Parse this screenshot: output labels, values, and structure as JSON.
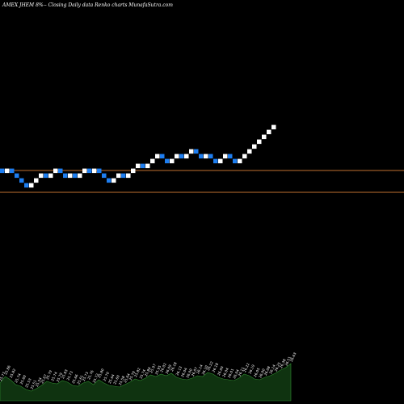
{
  "chart_data": {
    "type": "renko",
    "title": "AMEX  JHEM 8%-- Closing Daily data  Renko  charts MunafaSutra.com",
    "colors": {
      "up_brick": "#ffffff",
      "down_brick": "#1e7ef0",
      "reference_line": "#c07030",
      "volume_area": "#0f3310",
      "volume_edge": "#2f8a2f",
      "background": "#000000"
    },
    "reference_lines": [
      25.82,
      25.37
    ],
    "brick_size": 0.1,
    "bricks": [
      {
        "dir": "down",
        "close": 25.76
      },
      {
        "dir": "up",
        "close": 25.86
      },
      {
        "dir": "down",
        "close": 25.76
      },
      {
        "dir": "down",
        "close": 25.66
      },
      {
        "dir": "down",
        "close": 25.56
      },
      {
        "dir": "down",
        "close": 25.46
      },
      {
        "dir": "up",
        "close": 25.56
      },
      {
        "dir": "up",
        "close": 25.66
      },
      {
        "dir": "up",
        "close": 25.76
      },
      {
        "dir": "down",
        "close": 25.66
      },
      {
        "dir": "up",
        "close": 25.76
      },
      {
        "dir": "up",
        "close": 25.86
      },
      {
        "dir": "down",
        "close": 25.76
      },
      {
        "dir": "down",
        "close": 25.66
      },
      {
        "dir": "up",
        "close": 25.76
      },
      {
        "dir": "down",
        "close": 25.66
      },
      {
        "dir": "up",
        "close": 25.76
      },
      {
        "dir": "up",
        "close": 25.86
      },
      {
        "dir": "down",
        "close": 25.76
      },
      {
        "dir": "up",
        "close": 25.86
      },
      {
        "dir": "down",
        "close": 25.76
      },
      {
        "dir": "down",
        "close": 25.66
      },
      {
        "dir": "down",
        "close": 25.56
      },
      {
        "dir": "up",
        "close": 25.66
      },
      {
        "dir": "up",
        "close": 25.76
      },
      {
        "dir": "down",
        "close": 25.66
      },
      {
        "dir": "up",
        "close": 25.76
      },
      {
        "dir": "up",
        "close": 25.86
      },
      {
        "dir": "up",
        "close": 25.96
      },
      {
        "dir": "down",
        "close": 25.86
      },
      {
        "dir": "up",
        "close": 25.96
      },
      {
        "dir": "up",
        "close": 26.06
      },
      {
        "dir": "up",
        "close": 26.16
      },
      {
        "dir": "down",
        "close": 26.06
      },
      {
        "dir": "down",
        "close": 25.96
      },
      {
        "dir": "up",
        "close": 26.06
      },
      {
        "dir": "up",
        "close": 26.16
      },
      {
        "dir": "down",
        "close": 26.06
      },
      {
        "dir": "up",
        "close": 26.16
      },
      {
        "dir": "up",
        "close": 26.26
      },
      {
        "dir": "down",
        "close": 26.16
      },
      {
        "dir": "down",
        "close": 26.06
      },
      {
        "dir": "up",
        "close": 26.16
      },
      {
        "dir": "down",
        "close": 26.06
      },
      {
        "dir": "down",
        "close": 25.96
      },
      {
        "dir": "up",
        "close": 26.06
      },
      {
        "dir": "up",
        "close": 26.16
      },
      {
        "dir": "down",
        "close": 26.06
      },
      {
        "dir": "down",
        "close": 25.96
      },
      {
        "dir": "up",
        "close": 26.06
      },
      {
        "dir": "up",
        "close": 26.16
      },
      {
        "dir": "up",
        "close": 26.26
      },
      {
        "dir": "up",
        "close": 26.36
      },
      {
        "dir": "up",
        "close": 26.46
      },
      {
        "dir": "up",
        "close": 26.56
      },
      {
        "dir": "up",
        "close": 26.66
      },
      {
        "dir": "up",
        "close": 26.76
      }
    ],
    "volume_labels": [
      "25.77",
      "25.86",
      "25.82",
      "25.74",
      "25.60",
      "25.53",
      "25.51",
      "25.54",
      "25.67",
      "25.79",
      "25.74",
      "25.79",
      "25.83",
      "25.73",
      "25.66",
      "25.61",
      "25.73",
      "25.76",
      "25.72",
      "25.80",
      "25.70",
      "25.64",
      "25.60",
      "25.58",
      "25.64",
      "25.70",
      "25.82",
      "25.74",
      "25.84",
      "25.97",
      "25.95",
      "26.02",
      "26.09",
      "26.18",
      "26.13",
      "26.04",
      "26.00",
      "26.07",
      "26.14",
      "26.10",
      "26.22",
      "26.18",
      "26.09",
      "26.04",
      "26.01",
      "26.04",
      "26.11",
      "26.22",
      "26.19",
      "26.05",
      "26.00",
      "26.08",
      "26.14",
      "26.25",
      "26.38",
      "26.51",
      "26.63"
    ],
    "volume_values": [
      22,
      30,
      26,
      20,
      18,
      14,
      12,
      15,
      19,
      24,
      22,
      21,
      25,
      23,
      19,
      18,
      22,
      24,
      20,
      26,
      22,
      19,
      18,
      17,
      20,
      23,
      27,
      25,
      28,
      32,
      30,
      33,
      31,
      34,
      29,
      27,
      26,
      28,
      31,
      30,
      35,
      33,
      29,
      27,
      26,
      25,
      28,
      33,
      31,
      27,
      26,
      29,
      31,
      34,
      38,
      41,
      46
    ]
  }
}
